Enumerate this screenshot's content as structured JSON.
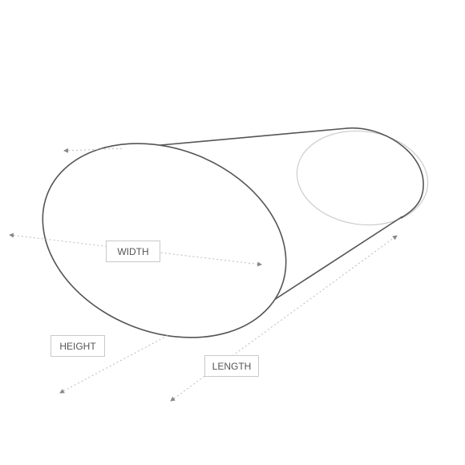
{
  "labels": {
    "width": "WIDTH",
    "height": "HEIGHT",
    "length": "LENGTH"
  },
  "colors": {
    "outline": "#555555",
    "back_face": "#cccccc",
    "dimension_line": "#bbbbbb",
    "label_border": "#c9c9c9",
    "label_text": "#555555"
  }
}
